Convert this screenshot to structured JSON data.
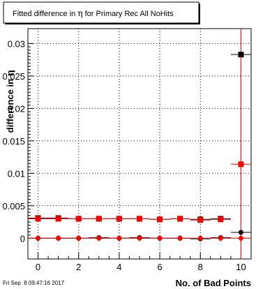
{
  "chart_data": {
    "type": "scatter",
    "title": "Fitted difference in η for Primary Rec All NoHits",
    "title_parts": {
      "before": "Fitted difference in ",
      "symbol": "η",
      "after": " for Primary Rec All NoHits"
    },
    "xlabel": "No. of Bad Points",
    "ylabel": "difference in η",
    "ylabel_parts": {
      "text": "difference in ",
      "symbol": "η"
    },
    "timestamp": "Fri Sep  8 09:47:16 2017",
    "xlim": [
      -0.5,
      10.5
    ],
    "ylim": [
      -0.0032,
      0.0323
    ],
    "grid": true,
    "x_ticks": [
      0,
      2,
      4,
      6,
      8,
      10
    ],
    "x_tick_labels": [
      "0",
      "2",
      "4",
      "6",
      "8",
      "10"
    ],
    "y_ticks": [
      0,
      0.005,
      0.01,
      0.015,
      0.02,
      0.025,
      0.03
    ],
    "y_tick_labels": [
      "0",
      "0.005",
      "0.01",
      "0.015",
      "0.02",
      "0.025",
      "0.03"
    ],
    "series": [
      {
        "marker": "square",
        "color": "#000000",
        "x": [
          0,
          1,
          2,
          3,
          4,
          5,
          6,
          7,
          8,
          9,
          10
        ],
        "y": [
          0.0031,
          0.0031,
          0.003,
          0.003,
          0.003,
          0.003,
          0.0029,
          0.003,
          0.0029,
          0.003,
          0.0283
        ]
      },
      {
        "marker": "square",
        "color": "#ff0000",
        "x": [
          0,
          1,
          2,
          3,
          4,
          5,
          6,
          7,
          8,
          9,
          10
        ],
        "y": [
          0.003,
          0.003,
          0.003,
          0.003,
          0.003,
          0.003,
          0.0029,
          0.003,
          0.0028,
          0.0029,
          0.0114
        ]
      },
      {
        "marker": "circle",
        "color": "#000000",
        "x": [
          0,
          1,
          2,
          3,
          4,
          5,
          6,
          7,
          8,
          9,
          10
        ],
        "y": [
          0.0,
          0.0,
          0.0,
          0.0001,
          0.0,
          0.0001,
          0.0,
          0.0,
          -0.0001,
          0.0001,
          0.0009
        ]
      },
      {
        "marker": "diamond",
        "color": "#ff0000",
        "x": [
          0,
          1,
          2,
          3,
          4,
          5,
          6,
          7,
          8,
          9,
          10
        ],
        "y": [
          0.0,
          0.0,
          0.0,
          0.0,
          0.0,
          0.0,
          0.0,
          0.0,
          0.0,
          0.0,
          0.0
        ]
      }
    ]
  }
}
